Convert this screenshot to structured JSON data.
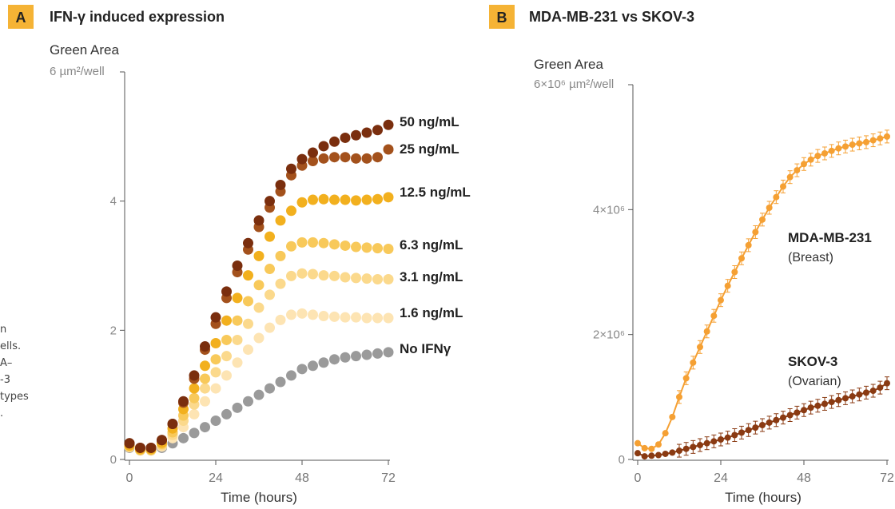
{
  "side_text": [
    "n",
    "ells.",
    "",
    "A–",
    "-3",
    "types",
    "."
  ],
  "chart_data": [
    {
      "panel_label": "A",
      "type": "scatter",
      "title": "IFN-γ induced expression",
      "ylabel_line1": "Green Area",
      "ylabel_line2": "6 µm²/well",
      "xlabel": "Time (hours)",
      "xticks": [
        0,
        24,
        48,
        72
      ],
      "yticks": [
        0,
        2,
        4
      ],
      "xlim": [
        0,
        72
      ],
      "ylim": [
        0,
        6
      ],
      "grid": false,
      "legend": "inline labels at right end of series",
      "series": [
        {
          "name": "50 ng/mL",
          "color": "#7a2e0e",
          "x": [
            0,
            3,
            6,
            9,
            12,
            15,
            18,
            21,
            24,
            27,
            30,
            33,
            36,
            39,
            42,
            45,
            48,
            51,
            54,
            57,
            60,
            63,
            66,
            69,
            72
          ],
          "y": [
            0.25,
            0.18,
            0.18,
            0.3,
            0.55,
            0.9,
            1.3,
            1.75,
            2.2,
            2.6,
            3.0,
            3.35,
            3.7,
            4.0,
            4.25,
            4.5,
            4.65,
            4.75,
            4.85,
            4.92,
            4.98,
            5.02,
            5.06,
            5.1,
            5.18
          ]
        },
        {
          "name": "25 ng/mL",
          "color": "#a3511c",
          "x": [
            0,
            3,
            6,
            9,
            12,
            15,
            18,
            21,
            24,
            27,
            30,
            33,
            36,
            39,
            42,
            45,
            48,
            51,
            54,
            57,
            60,
            63,
            66,
            69,
            72
          ],
          "y": [
            0.25,
            0.18,
            0.18,
            0.3,
            0.55,
            0.88,
            1.25,
            1.7,
            2.1,
            2.5,
            2.9,
            3.25,
            3.6,
            3.9,
            4.15,
            4.4,
            4.55,
            4.62,
            4.66,
            4.68,
            4.68,
            4.66,
            4.66,
            4.68,
            4.8
          ]
        },
        {
          "name": "12.5 ng/mL",
          "color": "#f2b01e",
          "x": [
            0,
            3,
            6,
            9,
            12,
            15,
            18,
            21,
            24,
            27,
            30,
            33,
            36,
            39,
            42,
            45,
            48,
            51,
            54,
            57,
            60,
            63,
            66,
            69,
            72
          ],
          "y": [
            0.22,
            0.16,
            0.16,
            0.26,
            0.48,
            0.78,
            1.1,
            1.45,
            1.8,
            2.15,
            2.5,
            2.85,
            3.15,
            3.45,
            3.7,
            3.85,
            3.98,
            4.02,
            4.03,
            4.02,
            4.02,
            4.01,
            4.02,
            4.03,
            4.06
          ]
        },
        {
          "name": "6.3 ng/mL",
          "color": "#f8c95a",
          "x": [
            0,
            3,
            6,
            9,
            12,
            15,
            18,
            21,
            24,
            27,
            30,
            33,
            36,
            39,
            42,
            45,
            48,
            51,
            54,
            57,
            60,
            63,
            66,
            69,
            72
          ],
          "y": [
            0.2,
            0.15,
            0.15,
            0.24,
            0.42,
            0.68,
            0.95,
            1.25,
            1.55,
            1.85,
            2.15,
            2.45,
            2.7,
            2.95,
            3.15,
            3.3,
            3.36,
            3.36,
            3.35,
            3.33,
            3.31,
            3.29,
            3.28,
            3.27,
            3.26
          ]
        },
        {
          "name": "3.1 ng/mL",
          "color": "#fbd98c",
          "x": [
            0,
            3,
            6,
            9,
            12,
            15,
            18,
            21,
            24,
            27,
            30,
            33,
            36,
            39,
            42,
            45,
            48,
            51,
            54,
            57,
            60,
            63,
            66,
            69,
            72
          ],
          "y": [
            0.2,
            0.14,
            0.14,
            0.22,
            0.38,
            0.6,
            0.85,
            1.1,
            1.35,
            1.6,
            1.85,
            2.1,
            2.35,
            2.55,
            2.72,
            2.84,
            2.88,
            2.87,
            2.85,
            2.84,
            2.82,
            2.81,
            2.8,
            2.79,
            2.79
          ]
        },
        {
          "name": "1.6 ng/mL",
          "color": "#fde4b3",
          "x": [
            0,
            3,
            6,
            9,
            12,
            15,
            18,
            21,
            24,
            27,
            30,
            33,
            36,
            39,
            42,
            45,
            48,
            51,
            54,
            57,
            60,
            63,
            66,
            69,
            72
          ],
          "y": [
            0.19,
            0.14,
            0.14,
            0.2,
            0.33,
            0.5,
            0.7,
            0.9,
            1.1,
            1.3,
            1.5,
            1.7,
            1.88,
            2.04,
            2.16,
            2.24,
            2.26,
            2.24,
            2.22,
            2.21,
            2.2,
            2.2,
            2.19,
            2.19,
            2.19
          ]
        },
        {
          "name": "No IFNγ",
          "color": "#9a9a9a",
          "x": [
            0,
            3,
            6,
            9,
            12,
            15,
            18,
            21,
            24,
            27,
            30,
            33,
            36,
            39,
            42,
            45,
            48,
            51,
            54,
            57,
            60,
            63,
            66,
            69,
            72
          ],
          "y": [
            0.18,
            0.14,
            0.14,
            0.18,
            0.25,
            0.33,
            0.41,
            0.5,
            0.6,
            0.7,
            0.8,
            0.9,
            1.0,
            1.1,
            1.2,
            1.3,
            1.4,
            1.45,
            1.5,
            1.55,
            1.58,
            1.6,
            1.62,
            1.64,
            1.66
          ]
        }
      ]
    },
    {
      "panel_label": "B",
      "type": "line",
      "title": "MDA-MB-231 vs SKOV-3",
      "ylabel_line1": "Green Area",
      "ylabel_line2": "6×10⁶ µm²/well",
      "xlabel": "Time (hours)",
      "xticks": [
        0,
        24,
        48,
        72
      ],
      "yticks": [
        0,
        2000000,
        4000000
      ],
      "ytick_labels": [
        "0",
        "2×10⁶",
        "4×10⁶"
      ],
      "xlim": [
        0,
        72
      ],
      "ylim": [
        0,
        6000000
      ],
      "grid": false,
      "legend": "inline labels beside series",
      "series": [
        {
          "name": "MDA-MB-231",
          "subtitle": "(Breast)",
          "color": "#f5a033",
          "x": [
            0,
            2,
            4,
            6,
            8,
            10,
            12,
            14,
            16,
            18,
            20,
            22,
            24,
            26,
            28,
            30,
            32,
            34,
            36,
            38,
            40,
            42,
            44,
            46,
            48,
            50,
            52,
            54,
            56,
            58,
            60,
            62,
            64,
            66,
            68,
            70,
            72
          ],
          "y": [
            260000,
            180000,
            170000,
            240000,
            420000,
            680000,
            1000000,
            1300000,
            1550000,
            1800000,
            2050000,
            2300000,
            2550000,
            2780000,
            3000000,
            3220000,
            3430000,
            3640000,
            3840000,
            4030000,
            4200000,
            4370000,
            4520000,
            4630000,
            4730000,
            4800000,
            4860000,
            4900000,
            4940000,
            4980000,
            5010000,
            5040000,
            5060000,
            5080000,
            5110000,
            5140000,
            5170000
          ]
        },
        {
          "name": "SKOV-3",
          "subtitle": "(Ovarian)",
          "color": "#8a3a12",
          "x": [
            0,
            2,
            4,
            6,
            8,
            10,
            12,
            14,
            16,
            18,
            20,
            22,
            24,
            26,
            28,
            30,
            32,
            34,
            36,
            38,
            40,
            42,
            44,
            46,
            48,
            50,
            52,
            54,
            56,
            58,
            60,
            62,
            64,
            66,
            68,
            70,
            72
          ],
          "y": [
            100000,
            50000,
            60000,
            70000,
            90000,
            110000,
            140000,
            170000,
            200000,
            230000,
            260000,
            290000,
            320000,
            350000,
            390000,
            430000,
            470000,
            510000,
            550000,
            590000,
            630000,
            670000,
            710000,
            750000,
            790000,
            830000,
            860000,
            890000,
            920000,
            950000,
            980000,
            1010000,
            1040000,
            1070000,
            1100000,
            1150000,
            1220000
          ]
        }
      ]
    }
  ]
}
